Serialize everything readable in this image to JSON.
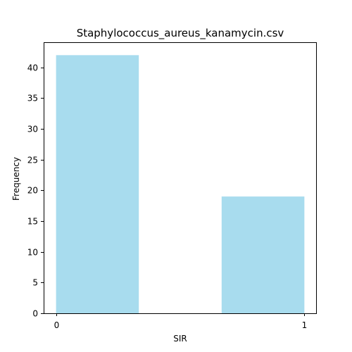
{
  "chart_data": {
    "type": "bar",
    "title": "Staphylococcus_aureus_kanamycin.csv",
    "xlabel": "SIR",
    "ylabel": "Frequency",
    "bins": [
      {
        "start": 0.0,
        "end": 0.3333,
        "value": 42
      },
      {
        "start": 0.3333,
        "end": 0.6667,
        "value": 0
      },
      {
        "start": 0.6667,
        "end": 1.0,
        "value": 19
      }
    ],
    "xlim": [
      -0.05,
      1.05
    ],
    "ylim": [
      0,
      44.1
    ],
    "xticks": [
      0,
      1
    ],
    "yticks": [
      0,
      5,
      10,
      15,
      20,
      25,
      30,
      35,
      40
    ],
    "bar_color": "#a8dcee",
    "grid": false,
    "legend": "none"
  }
}
